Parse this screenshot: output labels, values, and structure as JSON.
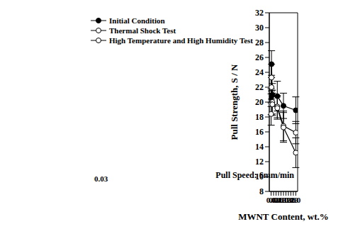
{
  "chart_data": {
    "type": "line",
    "x_label": "MWNT Content, wt.%",
    "y_label": "Pull Strength, S / N",
    "annotations": [
      "0.03",
      "Pull Speed: 6mm/min"
    ],
    "x": [
      0,
      0.03,
      0.1,
      0.5,
      1.0,
      2.0
    ],
    "xlim": [
      -0.15,
      2.15
    ],
    "xticks": [
      {
        "value": 0,
        "label": "0.0"
      },
      0.2,
      0.4,
      0.6,
      0.8,
      {
        "value": 1,
        "label": "1.0"
      },
      1.2,
      1.4,
      1.6,
      1.8,
      {
        "value": 2,
        "label": "2.0"
      }
    ],
    "ylim": [
      8,
      32
    ],
    "yticks": [
      8,
      10,
      12,
      14,
      16,
      18,
      20,
      22,
      24,
      26,
      28,
      30,
      32
    ],
    "legend": "upper left",
    "series": [
      {
        "name": "Initial Condition",
        "color": "#000000",
        "marker": "filled",
        "values": [
          20.6,
          25.1,
          21.0,
          20.8,
          19.5,
          18.9
        ],
        "errors": [
          1.2,
          1.8,
          1.5,
          2.0,
          1.7,
          1.8
        ]
      },
      {
        "name": "Thermal Shock Test",
        "color": "#000000",
        "marker": "open",
        "values": [
          18.4,
          23.3,
          20.0,
          19.4,
          16.8,
          15.9
        ],
        "errors": [
          1.5,
          1.8,
          1.6,
          1.5,
          2.0,
          1.5
        ]
      },
      {
        "name": "High Temperature and High Humidity Test",
        "color": "#000000",
        "marker": "open",
        "values": [
          19.7,
          22.0,
          19.7,
          19.2,
          16.6,
          13.2
        ],
        "errors": [
          1.4,
          1.6,
          1.5,
          1.5,
          2.0,
          2.0
        ]
      }
    ]
  }
}
